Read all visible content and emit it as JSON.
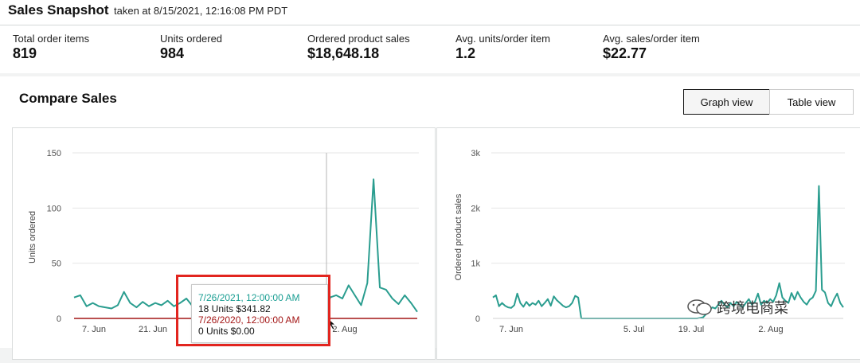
{
  "snapshot": {
    "title": "Sales Snapshot",
    "taken": "taken at 8/15/2021, 12:16:08 PM PDT",
    "metrics": [
      {
        "label": "Total order items",
        "value": "819"
      },
      {
        "label": "Units ordered",
        "value": "984"
      },
      {
        "label": "Ordered product sales",
        "value": "$18,648.18"
      },
      {
        "label": "Avg. units/order item",
        "value": "1.2"
      },
      {
        "label": "Avg. sales/order item",
        "value": "$22.77"
      }
    ]
  },
  "compare": {
    "title": "Compare Sales",
    "graph_view": "Graph view",
    "table_view": "Table view"
  },
  "tooltip": {
    "current_date": "7/26/2021, 12:00:00 AM",
    "current_value": "18 Units $341.82",
    "previous_date": "7/26/2020, 12:00:00 AM",
    "previous_value": "0 Units $0.00"
  },
  "watermark": "跨境电商菜",
  "colors": {
    "current_series": "#2a9d8f",
    "previous_series": "#a31616",
    "highlight": "#e2251f"
  },
  "chart_data": [
    {
      "type": "line",
      "ylabel": "Units ordered",
      "ylim": [
        0,
        150
      ],
      "yticks": [
        "0",
        "50",
        "100",
        "150"
      ],
      "xticks": [
        "7. Jun",
        "21. Jun",
        "5. Jul",
        "2. Aug"
      ],
      "grid": true,
      "series": [
        {
          "values": [
            19,
            21,
            11,
            14,
            11,
            10,
            9,
            12,
            24,
            14,
            10,
            15,
            11,
            14,
            12,
            16,
            11,
            14,
            18,
            11,
            21,
            17,
            14,
            11,
            10,
            12,
            14,
            11,
            10,
            18,
            15,
            15,
            28,
            16,
            27,
            18,
            26,
            20,
            13,
            30,
            22,
            19,
            21,
            18,
            30,
            21,
            12,
            32,
            126,
            28,
            26,
            18,
            13,
            21,
            14,
            6
          ]
        },
        {
          "values": [
            0,
            0,
            0,
            0,
            0,
            0,
            0,
            0,
            0,
            0,
            0,
            0,
            0,
            0,
            0,
            0,
            0,
            0,
            0,
            0,
            0,
            0,
            0,
            0,
            0,
            0,
            0,
            0,
            0,
            0,
            0,
            0,
            0,
            0,
            0,
            0,
            0,
            0,
            0,
            0,
            0,
            0,
            0,
            0,
            0,
            0,
            0,
            0,
            0,
            0,
            0,
            0,
            0,
            0,
            0,
            0
          ]
        }
      ]
    },
    {
      "type": "line",
      "ylabel": "Ordered product sales",
      "ylim": [
        0,
        3000
      ],
      "yticks": [
        "0",
        "1k",
        "2k",
        "3k"
      ],
      "xticks": [
        "7. Jun",
        "5. Jul",
        "19. Jul",
        "2. Aug"
      ],
      "grid": true,
      "series": [
        {
          "values": [
            380,
            420,
            220,
            280,
            230,
            200,
            190,
            240,
            450,
            280,
            210,
            300,
            230,
            280,
            250,
            320,
            220,
            280,
            350,
            230,
            400,
            330,
            280,
            230,
            200,
            220,
            280,
            410,
            380,
            0,
            0,
            0,
            0,
            0,
            0,
            0,
            0,
            0,
            0,
            0,
            0,
            0,
            0,
            0,
            0,
            0,
            0,
            0,
            0,
            0,
            0,
            0,
            0,
            0,
            0,
            0,
            0,
            0,
            0,
            0,
            0,
            0,
            0,
            0,
            0,
            0,
            0,
            0,
            10,
            20,
            80,
            150,
            200,
            180,
            250,
            320,
            250,
            200,
            280,
            220,
            300,
            250,
            200,
            280,
            350,
            250,
            300,
            450,
            250,
            320,
            280,
            350,
            300,
            420,
            640,
            380,
            320,
            280,
            460,
            340,
            480,
            380,
            300,
            250,
            340,
            380,
            500,
            2400,
            520,
            470,
            280,
            220,
            350,
            450,
            280,
            200
          ]
        }
      ]
    }
  ]
}
